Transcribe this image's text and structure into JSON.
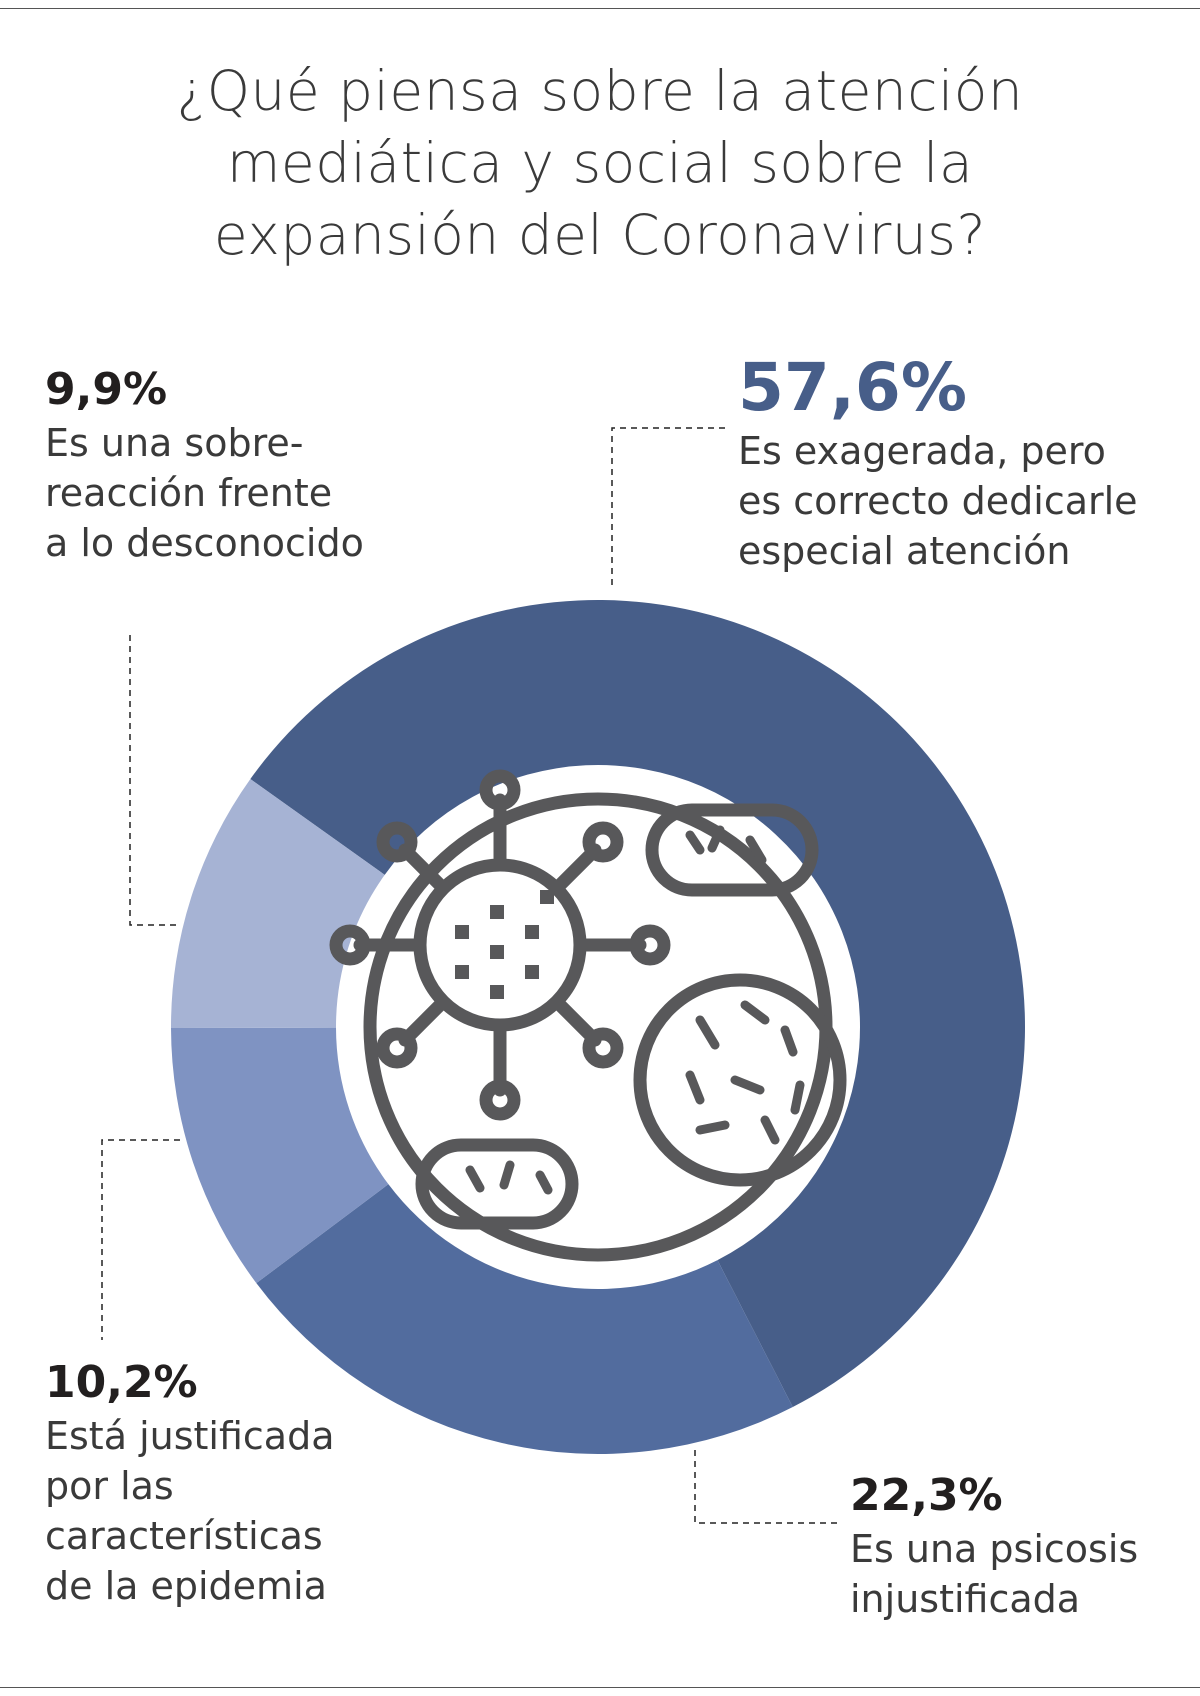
{
  "chart_data": {
    "type": "donut",
    "title": "¿Qué piensa sobre la atención mediática y social sobre la expansión del Coronavirus?",
    "categories": [
      "Es exagerada, pero es correcto dedicarle especial atención",
      "Es una psicosis injustificada",
      "Está justificada por las características de la epidemia",
      "Es una sobre-reacción frente a lo desconocido"
    ],
    "values": [
      57.6,
      22.3,
      10.2,
      9.9
    ],
    "value_labels": [
      "57,6%",
      "22,3%",
      "10,2%",
      "9,9%"
    ],
    "colors": [
      "#475e89",
      "#526c9e",
      "#7f93c2",
      "#a6b3d4"
    ]
  }
}
